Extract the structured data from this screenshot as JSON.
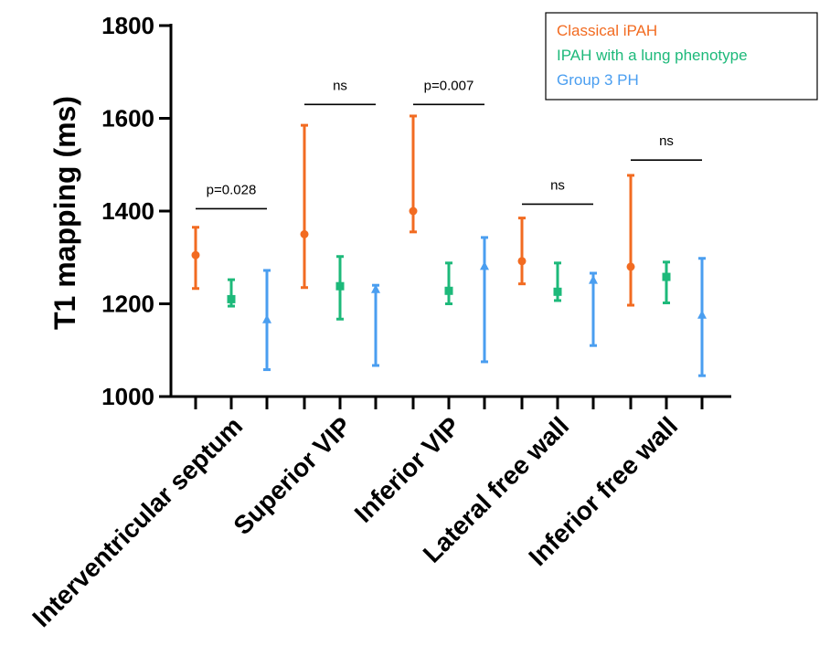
{
  "chart_data": {
    "type": "scatter",
    "ylabel": "T1 mapping (ms)",
    "ylim": [
      1000,
      1800
    ],
    "yticks": [
      "1000",
      "1200",
      "1400",
      "1600",
      "1800"
    ],
    "categories": [
      "Interventricular septum",
      "Superior VIP",
      "Inferior VIP",
      "Lateral free wall",
      "Inferior free wall"
    ],
    "series": [
      {
        "name": "Classical iPAH",
        "color": "#F26B21",
        "marker": "circle",
        "values": [
          1305,
          1350,
          1400,
          1292,
          1280
        ],
        "lower": [
          1233,
          1235,
          1355,
          1243,
          1197
        ],
        "upper": [
          1365,
          1585,
          1605,
          1385,
          1477
        ]
      },
      {
        "name": "IPAH with a lung phenotype",
        "color": "#1DB97A",
        "marker": "square",
        "values": [
          1210,
          1238,
          1228,
          1226,
          1258
        ],
        "lower": [
          1195,
          1167,
          1200,
          1207,
          1202
        ],
        "upper": [
          1252,
          1302,
          1288,
          1288,
          1290
        ]
      },
      {
        "name": "Group 3 PH",
        "color": "#4A9EF0",
        "marker": "triangle",
        "values": [
          1165,
          1230,
          1280,
          1250,
          1175
        ],
        "lower": [
          1058,
          1067,
          1075,
          1110,
          1045
        ],
        "upper": [
          1272,
          1240,
          1343,
          1266,
          1298
        ]
      }
    ],
    "annotations": [
      {
        "category": "Interventricular septum",
        "text": "p=0.028",
        "level": 1405
      },
      {
        "category": "Superior VIP",
        "text": "ns",
        "level": 1630
      },
      {
        "category": "Inferior VIP",
        "text": "p=0.007",
        "level": 1630
      },
      {
        "category": "Lateral free wall",
        "text": "ns",
        "level": 1415
      },
      {
        "category": "Inferior free wall",
        "text": "ns",
        "level": 1510
      }
    ],
    "legend_position": "top-right",
    "grid": false
  }
}
